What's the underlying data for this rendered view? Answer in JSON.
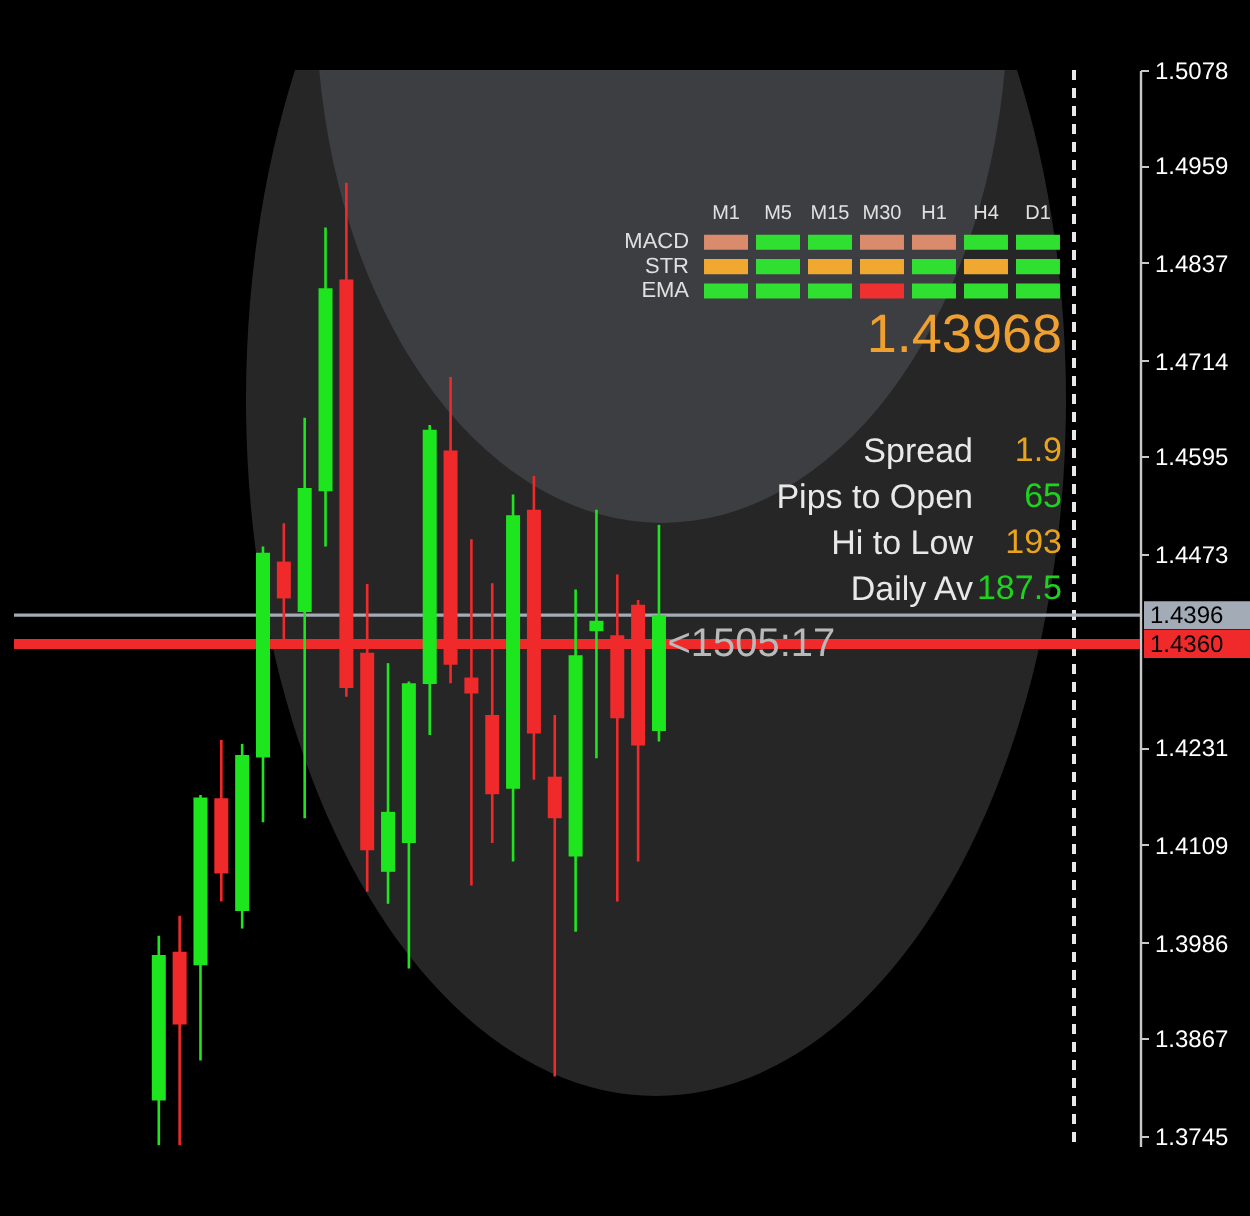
{
  "chart_data": [
    {
      "type": "candlestick",
      "categories": [
        null,
        null,
        null,
        null,
        null,
        null,
        null,
        null,
        null,
        null,
        null,
        null,
        null,
        null,
        null,
        null,
        null,
        null,
        null,
        null,
        null,
        null,
        null,
        null,
        null,
        null,
        null,
        null,
        null,
        null,
        null,
        null,
        null,
        null,
        null,
        null,
        null,
        null,
        null,
        null,
        null,
        null,
        null,
        null,
        null,
        null,
        null,
        null,
        null,
        null,
        null,
        null,
        null,
        null
      ],
      "ohlc": [
        null,
        null,
        null,
        null,
        null,
        null,
        null,
        [
          1.3789,
          1.3995,
          1.3733,
          1.3971
        ],
        [
          1.3975,
          1.402,
          1.3733,
          1.3884
        ],
        [
          1.3958,
          1.4171,
          1.3839,
          1.4168
        ],
        [
          1.4167,
          1.424,
          1.4038,
          1.4073
        ],
        [
          1.4026,
          1.4235,
          1.4004,
          1.4221
        ],
        [
          1.4218,
          1.4482,
          1.4137,
          1.4474
        ],
        [
          1.4463,
          1.4511,
          1.4355,
          1.4417
        ],
        [
          1.44,
          1.4643,
          1.4142,
          1.4555
        ],
        [
          1.4551,
          1.4881,
          1.4482,
          1.4805
        ],
        [
          1.4816,
          1.4937,
          1.4294,
          1.4305
        ],
        [
          1.4349,
          1.4435,
          1.405,
          1.4102
        ],
        [
          1.4075,
          1.4336,
          1.4035,
          1.415
        ],
        [
          1.4111,
          1.4313,
          1.3954,
          1.4311
        ],
        [
          1.431,
          1.4634,
          1.4246,
          1.4628
        ],
        [
          1.4602,
          1.4694,
          1.4311,
          1.4334
        ],
        [
          1.4318,
          1.4491,
          1.4058,
          1.4298
        ],
        [
          1.4271,
          1.4436,
          1.4111,
          1.4172
        ],
        [
          1.4179,
          1.4547,
          1.4088,
          1.4521
        ],
        [
          1.4528,
          1.457,
          1.419,
          1.4248
        ],
        [
          1.4194,
          1.4271,
          1.3819,
          1.4142
        ],
        [
          1.4094,
          1.4428,
          1.4,
          1.4346
        ],
        [
          1.4376,
          1.4528,
          1.4217,
          1.4389
        ],
        [
          1.4371,
          1.4447,
          1.4038,
          1.4267
        ],
        [
          1.4409,
          1.4415,
          1.4088,
          1.4233
        ],
        [
          1.4251,
          1.4509,
          1.4238,
          1.4396
        ],
        null,
        null,
        null,
        null,
        null,
        null,
        null,
        null,
        null,
        null,
        null,
        null,
        null,
        null,
        null,
        null,
        null,
        null,
        null,
        null,
        null,
        null
      ],
      "colors": [
        null,
        null,
        null,
        null,
        null,
        null,
        null,
        "#1ee61e",
        "#f02a2a",
        "#1ee61e",
        "#f02a2a",
        "#1ee61e",
        "#1ee61e",
        "#f02a2a",
        "#1ee61e",
        "#1ee61e",
        "#f02a2a",
        "#f02a2a",
        "#1ee61e",
        "#1ee61e",
        "#1ee61e",
        "#f02a2a",
        "#f02a2a",
        "#f02a2a",
        "#1ee61e",
        "#f02a2a",
        "#f02a2a",
        "#1ee61e",
        "#1ee61e",
        "#f02a2a",
        "#f02a2a",
        "#1ee61e",
        null,
        null,
        null,
        null,
        null,
        null,
        null,
        null,
        null,
        null,
        null,
        null,
        null,
        null,
        null,
        null,
        null,
        null,
        null,
        null,
        null,
        null
      ],
      "ylim": [
        1.3732,
        1.5078
      ],
      "yticks": [
        1.3745,
        1.3867,
        1.3986,
        1.4109,
        1.4231,
        1.4473,
        1.4595,
        1.4714,
        1.4837,
        1.4959,
        1.5078
      ],
      "ref_lines": [
        {
          "axis": "y",
          "value": 1.4396,
          "label": "1.4396",
          "color": "#a3acb6"
        },
        {
          "axis": "y",
          "value": 1.436,
          "label": "1.4360",
          "color": "#f02a2a"
        }
      ],
      "annotations": [
        {
          "text": "<1505:17",
          "y": 1.436
        }
      ],
      "tick_labels": "y"
    },
    {
      "type": "other",
      "categories": [
        "M1",
        "M5",
        "M15",
        "M30",
        "H1",
        "H4",
        "D1"
      ],
      "y_categories": [
        "MACD",
        "STR",
        "EMA"
      ],
      "colors": [
        [
          "#d98b6b",
          "#30e030",
          "#30e030",
          "#d98b6b",
          "#d98b6b",
          "#30e030",
          "#30e030"
        ],
        [
          "#f0a830",
          "#30e030",
          "#f0a830",
          "#f0a830",
          "#30e030",
          "#f0a830",
          "#30e030"
        ],
        [
          "#30e030",
          "#30e030",
          "#30e030",
          "#ee3030",
          "#30e030",
          "#30e030",
          "#30e030"
        ]
      ]
    },
    {
      "type": "other",
      "title": "1.43968",
      "categories": [
        "Spread",
        "Pips to Open",
        "Hi to Low",
        "Daily Av"
      ],
      "values": [
        1.9,
        65,
        193,
        187.5
      ],
      "colors": [
        "#e8a41c",
        "#1ed21e",
        "#e8a41c",
        "#1ed21e"
      ],
      "data_labels": true
    }
  ]
}
